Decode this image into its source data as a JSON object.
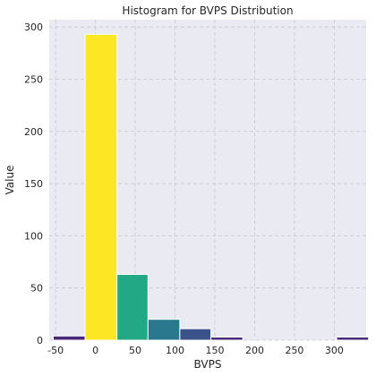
{
  "chart_data": {
    "type": "bar",
    "title": "Histogram for BVPS Distribution",
    "xlabel": "BVPS",
    "ylabel": "Value",
    "xlim": [
      -58,
      340
    ],
    "ylim": [
      0,
      307
    ],
    "x_ticks": [
      -50,
      0,
      50,
      100,
      150,
      200,
      250,
      300
    ],
    "y_ticks": [
      0,
      50,
      100,
      150,
      200,
      250,
      300
    ],
    "grid": true,
    "bins": [
      {
        "x0": -53,
        "x1": -13,
        "value": 4,
        "color": "#482878"
      },
      {
        "x0": -13,
        "x1": 27,
        "value": 293,
        "color": "#fde725"
      },
      {
        "x0": 27,
        "x1": 66,
        "value": 63,
        "color": "#22a884"
      },
      {
        "x0": 66,
        "x1": 106,
        "value": 20,
        "color": "#2a788e"
      },
      {
        "x0": 106,
        "x1": 145,
        "value": 11,
        "color": "#3b528b"
      },
      {
        "x0": 145,
        "x1": 185,
        "value": 3,
        "color": "#472d7b"
      },
      {
        "x0": 185,
        "x1": 224,
        "value": 0,
        "color": "#440154"
      },
      {
        "x0": 224,
        "x1": 264,
        "value": 0,
        "color": "#440154"
      },
      {
        "x0": 264,
        "x1": 303,
        "value": 0,
        "color": "#440154"
      },
      {
        "x0": 303,
        "x1": 343,
        "value": 3,
        "color": "#472d7b"
      }
    ]
  }
}
